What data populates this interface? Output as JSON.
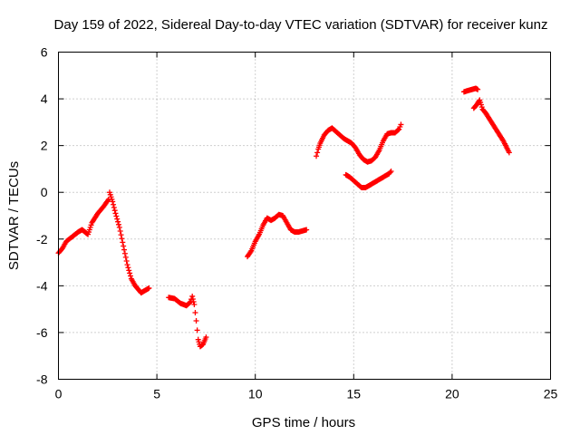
{
  "chart_data": {
    "type": "scatter",
    "title": "Day 159 of 2022, Sidereal Day-to-day VTEC variation (SDTVAR) for receiver kunz",
    "xlabel": "GPS time / hours",
    "ylabel": "SDTVAR / TECUs",
    "xlim": [
      0,
      25
    ],
    "ylim": [
      -8,
      6
    ],
    "xticks": [
      0,
      5,
      10,
      15,
      20,
      25
    ],
    "yticks": [
      -8,
      -6,
      -4,
      -2,
      0,
      2,
      4,
      6
    ],
    "xtick_labels": [
      "0",
      "5",
      "10",
      "15",
      "20",
      "25"
    ],
    "ytick_labels": [
      "-8",
      "-6",
      "-4",
      "-2",
      "0",
      "2",
      "4",
      "6"
    ],
    "grid": true,
    "marker": "plus",
    "color": "#ff0000",
    "segments": [
      [
        [
          0,
          -2.6
        ],
        [
          0.2,
          -2.4
        ],
        [
          0.4,
          -2.1
        ],
        [
          0.7,
          -1.9
        ],
        [
          1.0,
          -1.7
        ],
        [
          1.2,
          -1.6
        ],
        [
          1.5,
          -1.8
        ],
        [
          1.7,
          -1.3
        ],
        [
          2.0,
          -0.9
        ],
        [
          2.3,
          -0.6
        ],
        [
          2.55,
          -0.3
        ],
        [
          2.6,
          0.0
        ],
        [
          2.75,
          -0.4
        ],
        [
          2.9,
          -0.9
        ],
        [
          3.1,
          -1.5
        ],
        [
          3.3,
          -2.3
        ],
        [
          3.5,
          -3.1
        ],
        [
          3.7,
          -3.7
        ],
        [
          3.9,
          -4.0
        ],
        [
          4.2,
          -4.3
        ],
        [
          4.4,
          -4.2
        ],
        [
          4.6,
          -4.1
        ]
      ],
      [
        [
          5.6,
          -4.5
        ],
        [
          5.9,
          -4.55
        ],
        [
          6.2,
          -4.75
        ],
        [
          6.5,
          -4.85
        ],
        [
          6.7,
          -4.7
        ],
        [
          6.8,
          -4.45
        ],
        [
          6.9,
          -4.8
        ],
        [
          7.0,
          -5.5
        ],
        [
          7.1,
          -6.3
        ],
        [
          7.2,
          -6.6
        ],
        [
          7.35,
          -6.5
        ],
        [
          7.5,
          -6.2
        ]
      ],
      [
        [
          9.6,
          -2.75
        ],
        [
          9.8,
          -2.5
        ],
        [
          10.0,
          -2.1
        ],
        [
          10.2,
          -1.8
        ],
        [
          10.4,
          -1.4
        ],
        [
          10.6,
          -1.1
        ],
        [
          10.8,
          -1.2
        ],
        [
          11.0,
          -1.1
        ],
        [
          11.2,
          -0.95
        ],
        [
          11.4,
          -1.0
        ],
        [
          11.6,
          -1.3
        ],
        [
          11.8,
          -1.6
        ],
        [
          12.0,
          -1.7
        ],
        [
          12.2,
          -1.7
        ],
        [
          12.4,
          -1.65
        ],
        [
          12.6,
          -1.6
        ]
      ],
      [
        [
          13.1,
          1.55
        ],
        [
          13.2,
          1.85
        ],
        [
          13.3,
          2.1
        ],
        [
          13.5,
          2.45
        ],
        [
          13.7,
          2.65
        ],
        [
          13.9,
          2.75
        ],
        [
          14.1,
          2.6
        ],
        [
          14.3,
          2.45
        ],
        [
          14.5,
          2.3
        ],
        [
          14.7,
          2.2
        ],
        [
          14.9,
          2.1
        ],
        [
          15.1,
          1.9
        ],
        [
          15.3,
          1.6
        ],
        [
          15.5,
          1.4
        ],
        [
          15.7,
          1.3
        ],
        [
          15.9,
          1.35
        ],
        [
          16.1,
          1.5
        ],
        [
          16.3,
          1.8
        ],
        [
          16.5,
          2.2
        ],
        [
          16.7,
          2.5
        ],
        [
          16.9,
          2.55
        ],
        [
          17.1,
          2.55
        ],
        [
          17.3,
          2.7
        ],
        [
          17.4,
          2.9
        ]
      ],
      [
        [
          14.6,
          0.75
        ],
        [
          14.8,
          0.65
        ],
        [
          15.0,
          0.5
        ],
        [
          15.2,
          0.35
        ],
        [
          15.4,
          0.2
        ],
        [
          15.6,
          0.2
        ],
        [
          15.8,
          0.3
        ],
        [
          16.0,
          0.4
        ],
        [
          16.2,
          0.5
        ],
        [
          16.4,
          0.6
        ],
        [
          16.6,
          0.7
        ],
        [
          16.8,
          0.8
        ],
        [
          16.9,
          0.9
        ]
      ],
      [
        [
          20.6,
          4.3
        ],
        [
          20.8,
          4.35
        ],
        [
          21.0,
          4.4
        ],
        [
          21.2,
          4.45
        ],
        [
          21.3,
          4.4
        ]
      ],
      [
        [
          21.1,
          3.6
        ],
        [
          21.25,
          3.75
        ],
        [
          21.4,
          3.95
        ],
        [
          21.55,
          3.55
        ],
        [
          21.7,
          3.4
        ],
        [
          21.85,
          3.2
        ],
        [
          22.0,
          3.0
        ],
        [
          22.15,
          2.8
        ],
        [
          22.3,
          2.6
        ],
        [
          22.45,
          2.4
        ],
        [
          22.6,
          2.2
        ],
        [
          22.75,
          1.95
        ],
        [
          22.9,
          1.7
        ]
      ]
    ]
  }
}
